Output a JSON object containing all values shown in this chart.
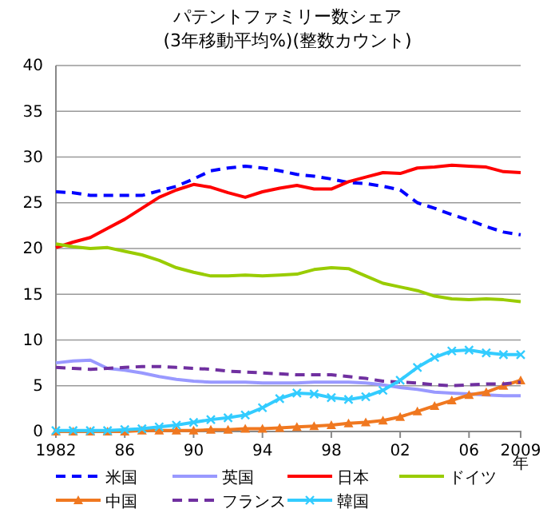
{
  "chart_data": {
    "type": "line",
    "title": "パテントファミリー数シェア",
    "subtitle": "(3年移動平均%)(整数カウント)",
    "xlabel": "年",
    "x": [
      1982,
      1983,
      1984,
      1985,
      1986,
      1987,
      1988,
      1989,
      1990,
      1991,
      1992,
      1993,
      1994,
      1995,
      1996,
      1997,
      1998,
      1999,
      2000,
      2001,
      2002,
      2003,
      2004,
      2005,
      2006,
      2007,
      2008,
      2009
    ],
    "xlim": [
      1982,
      2009
    ],
    "xticks": [
      1982,
      {
        "value": 1986,
        "label": "86"
      },
      {
        "value": 1990,
        "label": "90"
      },
      {
        "value": 1994,
        "label": "94"
      },
      {
        "value": 1998,
        "label": "98"
      },
      {
        "value": 2002,
        "label": "02"
      },
      {
        "value": 2006,
        "label": "06"
      },
      2009
    ],
    "ylim": [
      0,
      40
    ],
    "yticks": [
      0,
      5,
      10,
      15,
      20,
      25,
      30,
      35,
      40
    ],
    "grid": "y",
    "legend": "bottom",
    "series": [
      {
        "name": "米国",
        "color": "#0000ff",
        "line_style": "dashed",
        "marker": "none",
        "values": [
          26.2,
          26.1,
          25.8,
          25.8,
          25.8,
          25.8,
          26.3,
          26.8,
          27.6,
          28.5,
          28.8,
          29.0,
          28.8,
          28.5,
          28.1,
          27.9,
          27.6,
          27.2,
          27.1,
          26.8,
          26.4,
          25.0,
          24.4,
          23.7,
          23.1,
          22.4,
          21.8,
          21.5
        ]
      },
      {
        "name": "英国",
        "color": "#9999ff",
        "line_style": "solid",
        "marker": "none",
        "values": [
          7.5,
          7.7,
          7.8,
          6.9,
          6.7,
          6.4,
          6.0,
          5.7,
          5.5,
          5.4,
          5.4,
          5.4,
          5.3,
          5.3,
          5.3,
          5.4,
          5.4,
          5.4,
          5.3,
          5.1,
          4.8,
          4.6,
          4.3,
          4.2,
          4.1,
          4.0,
          3.9,
          3.9
        ]
      },
      {
        "name": "日本",
        "color": "#ff0000",
        "line_style": "solid",
        "marker": "none",
        "values": [
          20.1,
          20.7,
          21.2,
          22.2,
          23.2,
          24.4,
          25.6,
          26.4,
          27.0,
          26.7,
          26.1,
          25.6,
          26.2,
          26.6,
          26.9,
          26.5,
          26.5,
          27.3,
          27.8,
          28.3,
          28.2,
          28.8,
          28.9,
          29.1,
          29.0,
          28.9,
          28.4,
          28.3
        ]
      },
      {
        "name": "ドイツ",
        "color": "#99cc00",
        "line_style": "solid",
        "marker": "none",
        "values": [
          20.5,
          20.2,
          20.0,
          20.1,
          19.7,
          19.3,
          18.7,
          17.9,
          17.4,
          17.0,
          17.0,
          17.1,
          17.0,
          17.1,
          17.2,
          17.7,
          17.9,
          17.8,
          17.0,
          16.2,
          15.8,
          15.4,
          14.8,
          14.5,
          14.4,
          14.5,
          14.4,
          14.2
        ]
      },
      {
        "name": "中国",
        "color": "#f07820",
        "line_style": "solid",
        "marker": "triangle",
        "values": [
          0.0,
          0.0,
          0.0,
          0.0,
          0.0,
          0.1,
          0.1,
          0.1,
          0.1,
          0.2,
          0.2,
          0.3,
          0.3,
          0.4,
          0.5,
          0.6,
          0.7,
          0.9,
          1.0,
          1.2,
          1.6,
          2.2,
          2.8,
          3.4,
          4.0,
          4.3,
          5.0,
          5.6
        ]
      },
      {
        "name": "フランス",
        "color": "#7030a0",
        "line_style": "dashed",
        "marker": "none",
        "values": [
          7.0,
          6.9,
          6.8,
          6.9,
          7.0,
          7.1,
          7.1,
          7.0,
          6.9,
          6.8,
          6.6,
          6.5,
          6.4,
          6.3,
          6.2,
          6.2,
          6.2,
          6.0,
          5.8,
          5.5,
          5.4,
          5.3,
          5.1,
          5.0,
          5.1,
          5.2,
          5.2,
          5.4
        ]
      },
      {
        "name": "韓国",
        "color": "#33ccff",
        "line_style": "solid",
        "marker": "cross",
        "values": [
          0.1,
          0.1,
          0.1,
          0.1,
          0.2,
          0.3,
          0.5,
          0.7,
          1.0,
          1.3,
          1.5,
          1.8,
          2.6,
          3.6,
          4.2,
          4.1,
          3.7,
          3.5,
          3.8,
          4.5,
          5.6,
          7.0,
          8.1,
          8.8,
          8.9,
          8.6,
          8.4,
          8.4
        ]
      }
    ]
  }
}
